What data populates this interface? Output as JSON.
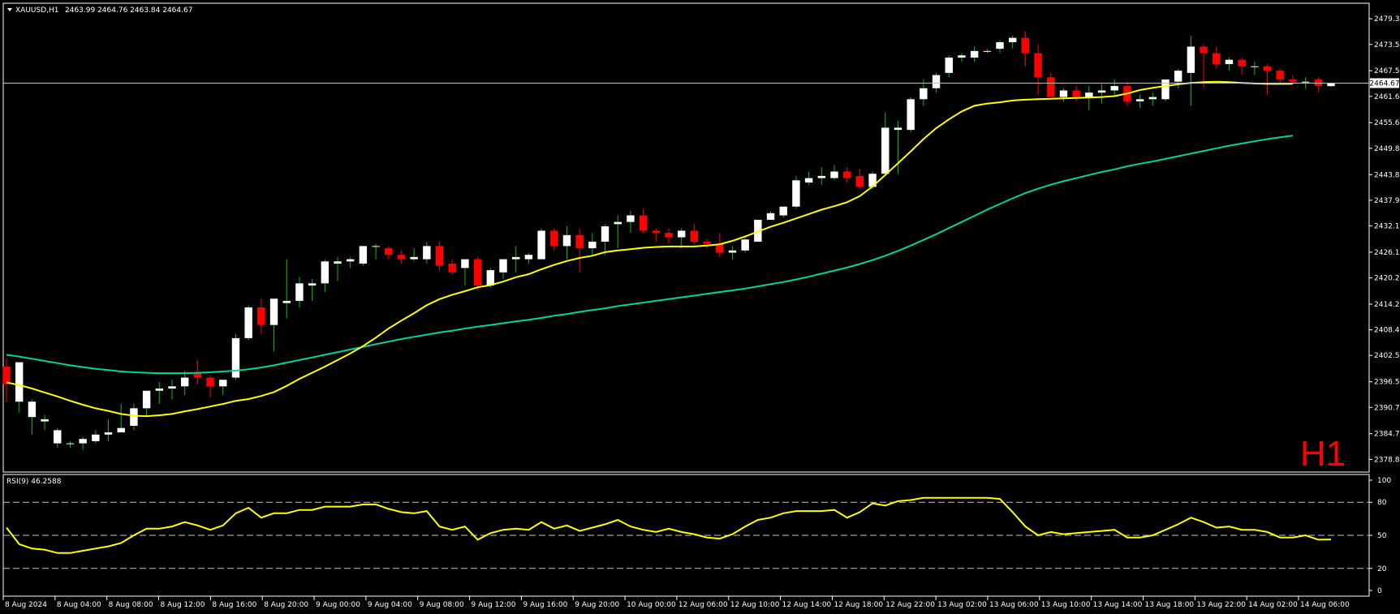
{
  "header": {
    "symbol": "XAUUSD,H1",
    "ohlc": "2463.99 2464.76 2463.84 2464.67"
  },
  "timeframe_label": "H1",
  "rsi_label": "RSI(9) 46.2588",
  "current_price_label": "2464.67",
  "colors": {
    "background": "#000000",
    "frame": "#ffffff",
    "bull_body": "#ffffff",
    "bear_body": "#ff0000",
    "wick_bull": "#00c000",
    "wick_bear": "#ff0000",
    "ma_fast": "#ffff00",
    "ma_slow": "#00d2a0",
    "rsi_line": "#ffff00",
    "level_line": "#c0c0c0",
    "timeframe_text": "#ff0000"
  },
  "chart_data": [
    {
      "type": "candlestick",
      "symbol": "XAUUSD",
      "timeframe": "H1",
      "ylim": [
        2375.95,
        2482.89
      ],
      "y_ticks": [
        "2479.35",
        "2473.50",
        "2467.50",
        "2461.65",
        "2455.65",
        "2449.80",
        "2443.80",
        "2437.95",
        "2432.10",
        "2426.10",
        "2420.25",
        "2414.25",
        "2408.40",
        "2402.55",
        "2396.55",
        "2390.70",
        "2384.70",
        "2378.85"
      ],
      "x_ticks": [
        "8 Aug 2024",
        "8 Aug 04:00",
        "8 Aug 08:00",
        "8 Aug 12:00",
        "8 Aug 16:00",
        "8 Aug 20:00",
        "9 Aug 00:00",
        "9 Aug 04:00",
        "9 Aug 08:00",
        "9 Aug 12:00",
        "9 Aug 16:00",
        "9 Aug 20:00",
        "10 Aug 00:00",
        "12 Aug 06:00",
        "12 Aug 10:00",
        "12 Aug 14:00",
        "12 Aug 18:00",
        "12 Aug 22:00",
        "13 Aug 02:00",
        "13 Aug 06:00",
        "13 Aug 10:00",
        "13 Aug 14:00",
        "13 Aug 18:00",
        "13 Aug 22:00",
        "14 Aug 02:00",
        "14 Aug 06:00"
      ],
      "current_price": 2464.67,
      "candles": [
        [
          2400.0,
          2402.0,
          2392.0,
          2396.0
        ],
        [
          2392.0,
          2401.0,
          2389.5,
          2401.0
        ],
        [
          2388.5,
          2392.5,
          2384.5,
          2392.0
        ],
        [
          2387.5,
          2389.0,
          2385.5,
          2388.0
        ],
        [
          2382.5,
          2386.0,
          2381.5,
          2385.5
        ],
        [
          2382.5,
          2383.0,
          2381.5,
          2382.5
        ],
        [
          2382.5,
          2384.0,
          2381.0,
          2383.5
        ],
        [
          2383.0,
          2385.5,
          2382.5,
          2384.5
        ],
        [
          2384.5,
          2388.0,
          2383.0,
          2385.0
        ],
        [
          2385.0,
          2391.5,
          2385.0,
          2386.0
        ],
        [
          2386.5,
          2391.5,
          2385.5,
          2390.5
        ],
        [
          2390.5,
          2394.0,
          2388.5,
          2394.5
        ],
        [
          2394.5,
          2396.5,
          2391.5,
          2395.0
        ],
        [
          2395.0,
          2397.0,
          2392.5,
          2395.5
        ],
        [
          2395.5,
          2399.0,
          2393.5,
          2397.5
        ],
        [
          2398.5,
          2401.5,
          2396.0,
          2397.5
        ],
        [
          2397.5,
          2398.0,
          2393.0,
          2395.5
        ],
        [
          2395.5,
          2397.0,
          2393.5,
          2397.0
        ],
        [
          2397.5,
          2407.5,
          2397.0,
          2406.5
        ],
        [
          2406.5,
          2414.0,
          2406.0,
          2413.5
        ],
        [
          2413.5,
          2415.5,
          2407.5,
          2409.5
        ],
        [
          2409.5,
          2415.0,
          2403.5,
          2415.5
        ],
        [
          2414.5,
          2424.5,
          2411.0,
          2415.0
        ],
        [
          2415.0,
          2420.5,
          2413.5,
          2419.0
        ],
        [
          2418.5,
          2420.0,
          2415.0,
          2419.0
        ],
        [
          2419.0,
          2424.5,
          2417.0,
          2424.0
        ],
        [
          2423.5,
          2425.0,
          2419.5,
          2424.0
        ],
        [
          2424.0,
          2425.0,
          2422.5,
          2424.5
        ],
        [
          2423.5,
          2427.5,
          2423.0,
          2427.5
        ],
        [
          2427.5,
          2428.0,
          2424.5,
          2427.5
        ],
        [
          2427.0,
          2427.5,
          2424.5,
          2425.5
        ],
        [
          2425.5,
          2426.5,
          2423.5,
          2424.5
        ],
        [
          2424.5,
          2427.0,
          2424.0,
          2425.0
        ],
        [
          2424.5,
          2428.5,
          2423.5,
          2427.5
        ],
        [
          2427.5,
          2428.5,
          2422.0,
          2423.0
        ],
        [
          2423.5,
          2424.5,
          2421.0,
          2421.5
        ],
        [
          2422.5,
          2424.0,
          2418.5,
          2424.5
        ],
        [
          2424.5,
          2425.0,
          2417.5,
          2418.5
        ],
        [
          2418.5,
          2422.5,
          2418.0,
          2422.0
        ],
        [
          2421.5,
          2424.5,
          2420.0,
          2424.5
        ],
        [
          2424.5,
          2427.5,
          2421.5,
          2425.0
        ],
        [
          2424.5,
          2426.0,
          2423.5,
          2425.5
        ],
        [
          2424.5,
          2431.5,
          2424.5,
          2431.0
        ],
        [
          2431.0,
          2431.5,
          2426.5,
          2427.5
        ],
        [
          2427.5,
          2432.0,
          2424.5,
          2430.0
        ],
        [
          2430.0,
          2431.5,
          2421.5,
          2427.0
        ],
        [
          2427.0,
          2430.5,
          2425.5,
          2428.5
        ],
        [
          2428.5,
          2432.5,
          2425.5,
          2432.0
        ],
        [
          2432.5,
          2434.5,
          2427.0,
          2433.0
        ],
        [
          2433.0,
          2435.5,
          2430.5,
          2434.5
        ],
        [
          2434.5,
          2436.0,
          2430.5,
          2431.0
        ],
        [
          2431.0,
          2431.5,
          2428.5,
          2430.5
        ],
        [
          2430.5,
          2431.5,
          2428.0,
          2429.5
        ],
        [
          2429.5,
          2431.5,
          2427.0,
          2431.0
        ],
        [
          2431.0,
          2432.5,
          2428.0,
          2428.5
        ],
        [
          2428.5,
          2429.0,
          2427.0,
          2428.0
        ],
        [
          2428.0,
          2430.5,
          2425.0,
          2426.0
        ],
        [
          2426.0,
          2427.5,
          2424.5,
          2426.5
        ],
        [
          2426.5,
          2429.5,
          2426.0,
          2429.0
        ],
        [
          2428.5,
          2433.5,
          2428.5,
          2433.5
        ],
        [
          2433.5,
          2435.5,
          2433.5,
          2435.0
        ],
        [
          2434.5,
          2436.5,
          2434.0,
          2436.5
        ],
        [
          2436.5,
          2443.5,
          2436.0,
          2442.5
        ],
        [
          2442.0,
          2444.5,
          2441.5,
          2443.0
        ],
        [
          2443.0,
          2445.5,
          2441.5,
          2443.5
        ],
        [
          2443.0,
          2446.0,
          2442.5,
          2444.5
        ],
        [
          2444.5,
          2445.5,
          2442.0,
          2443.0
        ],
        [
          2443.5,
          2445.0,
          2440.5,
          2441.0
        ],
        [
          2441.0,
          2444.5,
          2440.5,
          2444.0
        ],
        [
          2444.0,
          2458.0,
          2444.0,
          2454.5
        ],
        [
          2454.0,
          2456.0,
          2444.0,
          2454.5
        ],
        [
          2454.0,
          2461.5,
          2453.5,
          2461.0
        ],
        [
          2461.0,
          2465.5,
          2459.5,
          2463.5
        ],
        [
          2463.5,
          2467.0,
          2462.5,
          2466.5
        ],
        [
          2467.0,
          2471.0,
          2466.0,
          2470.5
        ],
        [
          2470.5,
          2471.5,
          2469.5,
          2471.0
        ],
        [
          2470.5,
          2473.0,
          2469.5,
          2472.0
        ],
        [
          2472.0,
          2472.5,
          2471.5,
          2472.0
        ],
        [
          2472.5,
          2474.5,
          2471.5,
          2474.0
        ],
        [
          2474.0,
          2475.5,
          2472.5,
          2475.0
        ],
        [
          2475.0,
          2476.5,
          2468.5,
          2471.5
        ],
        [
          2471.5,
          2473.5,
          2462.0,
          2466.0
        ],
        [
          2466.0,
          2467.0,
          2461.5,
          2461.5
        ],
        [
          2461.5,
          2463.5,
          2460.5,
          2463.0
        ],
        [
          2463.0,
          2464.0,
          2460.5,
          2461.5
        ],
        [
          2461.5,
          2464.0,
          2458.5,
          2462.5
        ],
        [
          2462.5,
          2464.5,
          2460.0,
          2463.0
        ],
        [
          2463.0,
          2465.5,
          2461.5,
          2464.0
        ],
        [
          2464.0,
          2465.0,
          2459.5,
          2460.5
        ],
        [
          2460.5,
          2462.0,
          2459.0,
          2461.0
        ],
        [
          2461.0,
          2462.5,
          2459.5,
          2461.5
        ],
        [
          2461.0,
          2465.5,
          2460.5,
          2465.5
        ],
        [
          2465.0,
          2468.0,
          2463.5,
          2467.5
        ],
        [
          2467.0,
          2475.5,
          2459.5,
          2473.0
        ],
        [
          2473.0,
          2473.5,
          2463.5,
          2471.5
        ],
        [
          2471.5,
          2473.0,
          2468.0,
          2469.0
        ],
        [
          2469.0,
          2470.5,
          2467.5,
          2470.0
        ],
        [
          2470.0,
          2470.5,
          2466.5,
          2468.5
        ],
        [
          2468.5,
          2469.5,
          2466.5,
          2468.5
        ],
        [
          2468.5,
          2469.0,
          2462.0,
          2467.5
        ],
        [
          2467.5,
          2468.0,
          2464.5,
          2465.5
        ],
        [
          2465.5,
          2466.5,
          2464.5,
          2465.0
        ],
        [
          2465.0,
          2466.0,
          2463.5,
          2465.0
        ],
        [
          2465.5,
          2466.0,
          2462.5,
          2464.0
        ],
        [
          2463.99,
          2464.76,
          2463.84,
          2464.67
        ]
      ],
      "ma_fast": [
        2396.4,
        2395.8,
        2395.0,
        2394.1,
        2393.2,
        2392.2,
        2391.3,
        2390.5,
        2389.9,
        2389.2,
        2388.8,
        2388.7,
        2388.9,
        2389.2,
        2389.8,
        2390.3,
        2390.9,
        2391.5,
        2392.2,
        2392.6,
        2393.3,
        2394.2,
        2395.6,
        2397.2,
        2398.6,
        2400.0,
        2401.5,
        2403.0,
        2404.7,
        2406.6,
        2408.7,
        2410.5,
        2412.2,
        2414.0,
        2415.4,
        2416.4,
        2417.2,
        2418.1,
        2418.6,
        2419.4,
        2420.4,
        2421.1,
        2422.2,
        2423.2,
        2424.1,
        2424.8,
        2425.3,
        2426.1,
        2426.5,
        2426.8,
        2427.1,
        2427.3,
        2427.4,
        2427.4,
        2427.4,
        2427.6,
        2427.9,
        2428.7,
        2429.7,
        2430.8,
        2431.9,
        2432.8,
        2433.8,
        2434.8,
        2435.8,
        2436.6,
        2437.5,
        2438.9,
        2441.1,
        2443.7,
        2446.4,
        2449.1,
        2451.9,
        2454.4,
        2456.4,
        2458.2,
        2459.5,
        2460.0,
        2460.3,
        2460.7,
        2460.9,
        2461.0,
        2461.1,
        2461.2,
        2461.3,
        2461.4,
        2461.5,
        2461.7,
        2462.3,
        2463.1,
        2463.6,
        2464.0,
        2464.4,
        2464.7,
        2464.9,
        2465.0,
        2464.9,
        2464.7,
        2464.6,
        2464.5,
        2464.5,
        2464.5
      ],
      "ma_slow": [
        2402.7,
        2402.3,
        2401.8,
        2401.3,
        2400.8,
        2400.3,
        2399.9,
        2399.5,
        2399.2,
        2398.9,
        2398.7,
        2398.6,
        2398.5,
        2398.5,
        2398.5,
        2398.6,
        2398.7,
        2398.9,
        2399.1,
        2399.4,
        2399.8,
        2400.3,
        2400.9,
        2401.5,
        2402.1,
        2402.7,
        2403.3,
        2403.9,
        2404.5,
        2405.1,
        2405.7,
        2406.3,
        2406.8,
        2407.3,
        2407.8,
        2408.2,
        2408.7,
        2409.1,
        2409.5,
        2409.9,
        2410.3,
        2410.7,
        2411.1,
        2411.6,
        2412.0,
        2412.5,
        2412.9,
        2413.3,
        2413.8,
        2414.2,
        2414.6,
        2415.0,
        2415.4,
        2415.8,
        2416.2,
        2416.6,
        2417.0,
        2417.4,
        2417.8,
        2418.3,
        2418.8,
        2419.3,
        2419.9,
        2420.5,
        2421.2,
        2421.9,
        2422.6,
        2423.4,
        2424.3,
        2425.3,
        2426.4,
        2427.6,
        2428.9,
        2430.2,
        2431.6,
        2433.0,
        2434.4,
        2435.8,
        2437.1,
        2438.4,
        2439.6,
        2440.6,
        2441.5,
        2442.3,
        2443.0,
        2443.7,
        2444.4,
        2445.0,
        2445.7,
        2446.3,
        2446.8,
        2447.4,
        2448.0,
        2448.6,
        2449.2,
        2449.8,
        2450.4,
        2450.9,
        2451.4,
        2451.9,
        2452.3,
        2452.7
      ],
      "ma_start_index": 0
    },
    {
      "type": "line",
      "name": "RSI(9)",
      "last_value": 46.2588,
      "ylim": [
        0,
        100
      ],
      "y_ticks": [
        100,
        80,
        50,
        20,
        0
      ],
      "levels": [
        80,
        50,
        20
      ],
      "values": [
        57,
        42,
        38,
        37,
        34,
        34,
        36,
        38,
        40,
        43,
        50,
        56,
        56,
        58,
        62,
        59,
        55,
        59,
        70,
        75,
        66,
        70,
        70,
        73,
        73,
        76,
        76,
        76,
        78,
        78,
        74,
        71,
        70,
        72,
        58,
        55,
        58,
        46,
        52,
        55,
        56,
        55,
        62,
        56,
        59,
        54,
        57,
        60,
        64,
        58,
        55,
        53,
        56,
        53,
        51,
        48,
        47,
        51,
        58,
        64,
        66,
        70,
        72,
        72,
        72,
        73,
        66,
        71,
        79,
        77,
        81,
        82,
        84,
        84,
        84,
        84,
        84,
        84,
        83,
        71,
        58,
        50,
        53,
        51,
        52,
        53,
        54,
        55,
        48,
        48,
        50,
        55,
        60,
        66,
        62,
        57,
        58,
        55,
        55,
        53,
        48,
        48,
        50,
        46,
        46.2588
      ]
    }
  ]
}
